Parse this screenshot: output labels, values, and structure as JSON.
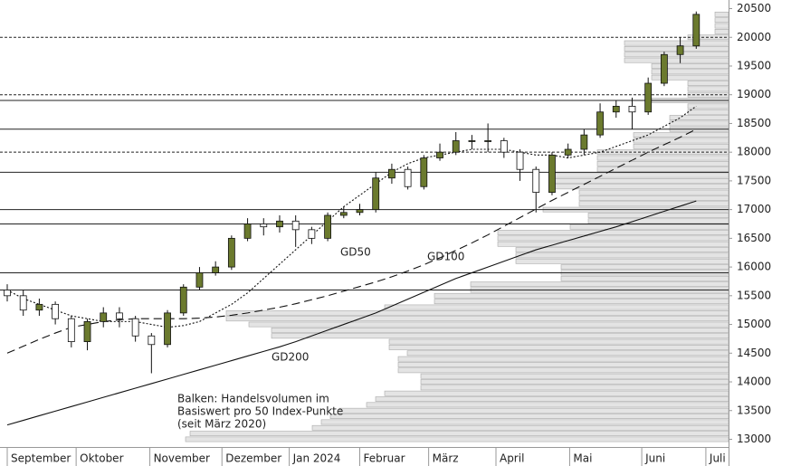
{
  "chart_data": {
    "type": "candlestick",
    "ylim": [
      12850,
      20650
    ],
    "yticks": [
      13000,
      13500,
      14000,
      14500,
      15000,
      15500,
      16000,
      16500,
      17000,
      17500,
      18000,
      18500,
      19000,
      19500,
      20000,
      20500
    ],
    "xlim": [
      0,
      44
    ],
    "xticks": [
      {
        "value": 0,
        "label": "September"
      },
      {
        "value": 4.3,
        "label": "Oktober"
      },
      {
        "value": 8.9,
        "label": "November"
      },
      {
        "value": 13.4,
        "label": "Dezember"
      },
      {
        "value": 17.6,
        "label": "Jan 2024"
      },
      {
        "value": 22,
        "label": "Februar"
      },
      {
        "value": 26.3,
        "label": "März"
      },
      {
        "value": 30.5,
        "label": "April"
      },
      {
        "value": 35.1,
        "label": "Mai"
      },
      {
        "value": 39.6,
        "label": "Juni"
      },
      {
        "value": 43.6,
        "label": "Juli"
      }
    ],
    "ohlc": {
      "open": [
        15600,
        15500,
        15250,
        15350,
        15100,
        14700,
        15050,
        15200,
        15100,
        14800,
        14650,
        15200,
        15650,
        15900,
        16000,
        16500,
        16750,
        16700,
        16800,
        16650,
        16500,
        16900,
        16950,
        17000,
        17550,
        17700,
        17400,
        17900,
        18000,
        18200,
        18200,
        18200,
        18000,
        17700,
        17300,
        17950,
        18050,
        18300,
        18700,
        18800,
        18700,
        19200,
        19700,
        19850
      ],
      "high": [
        15700,
        15600,
        15450,
        15400,
        15150,
        15100,
        15300,
        15300,
        15150,
        14850,
        15250,
        15700,
        16000,
        16100,
        16550,
        16850,
        16850,
        16900,
        16900,
        16700,
        16950,
        17050,
        17100,
        17650,
        17800,
        17750,
        17950,
        18150,
        18350,
        18300,
        18500,
        18250,
        18050,
        17750,
        18000,
        18150,
        18400,
        18850,
        18900,
        18950,
        19300,
        19750,
        20000,
        20450
      ],
      "low": [
        15400,
        15150,
        15150,
        15000,
        14600,
        14550,
        14950,
        14950,
        14700,
        14150,
        14600,
        15150,
        15600,
        15850,
        15950,
        16450,
        16550,
        16600,
        16350,
        16400,
        16450,
        16850,
        16900,
        16950,
        17450,
        17350,
        17350,
        17850,
        17950,
        18050,
        18000,
        17900,
        17500,
        16950,
        17250,
        17900,
        17950,
        18250,
        18600,
        18400,
        18650,
        19150,
        19550,
        19800
      ],
      "close": [
        15500,
        15250,
        15350,
        15100,
        14700,
        15050,
        15200,
        15100,
        14800,
        14650,
        15200,
        15650,
        15900,
        16000,
        16500,
        16750,
        16700,
        16800,
        16650,
        16500,
        16900,
        16950,
        17000,
        17550,
        17700,
        17400,
        17900,
        18000,
        18200,
        18200,
        18200,
        18000,
        17700,
        17300,
        17950,
        18050,
        18300,
        18700,
        18800,
        18700,
        19200,
        19700,
        19850,
        20400
      ],
      "up_color": "#6b7a2e",
      "down_color": "#ffffff"
    },
    "series": [
      {
        "name": "GD50",
        "dash": "2,2",
        "values": [
          15600,
          15450,
          15350,
          15250,
          15150,
          15100,
          15050,
          15050,
          15050,
          15000,
          14950,
          14980,
          15050,
          15200,
          15350,
          15550,
          15800,
          16050,
          16300,
          16550,
          16800,
          17050,
          17250,
          17450,
          17650,
          17800,
          17900,
          17950,
          18000,
          18050,
          18050,
          18050,
          18000,
          17950,
          17950,
          17900,
          17950,
          18000,
          18100,
          18200,
          18300,
          18450,
          18600,
          18800
        ]
      },
      {
        "name": "GD100",
        "dash": "9,5",
        "values": [
          14500,
          14620,
          14740,
          14850,
          14950,
          15000,
          15050,
          15080,
          15100,
          15100,
          15100,
          15100,
          15110,
          15130,
          15160,
          15200,
          15250,
          15300,
          15360,
          15430,
          15500,
          15580,
          15660,
          15740,
          15830,
          15930,
          16040,
          16160,
          16290,
          16420,
          16560,
          16710,
          16860,
          17010,
          17160,
          17300,
          17440,
          17580,
          17720,
          17860,
          18000,
          18130,
          18260,
          18400
        ]
      },
      {
        "name": "GD200",
        "dash": "none",
        "values": [
          13250,
          13330,
          13410,
          13490,
          13570,
          13650,
          13730,
          13810,
          13890,
          13970,
          14050,
          14130,
          14210,
          14290,
          14370,
          14450,
          14530,
          14610,
          14700,
          14800,
          14900,
          15000,
          15100,
          15200,
          15320,
          15440,
          15560,
          15680,
          15800,
          15900,
          16000,
          16100,
          16200,
          16300,
          16380,
          16460,
          16540,
          16620,
          16700,
          16790,
          16880,
          16970,
          17060,
          17150
        ]
      }
    ],
    "solid_levels": [
      15600,
      15900,
      16750,
      17000,
      17650,
      18400,
      18900
    ],
    "dotted_levels": [
      18000,
      19000,
      20000
    ],
    "volume_lim": [
      0,
      600
    ],
    "volume_profile": {
      "prices": [
        13000,
        13100,
        13200,
        13300,
        13400,
        13500,
        13600,
        13700,
        13800,
        13900,
        14000,
        14100,
        14200,
        14300,
        14400,
        14500,
        14600,
        14700,
        14800,
        14900,
        15000,
        15100,
        15200,
        15300,
        15400,
        15500,
        15600,
        15700,
        15800,
        15900,
        16000,
        16100,
        16200,
        16300,
        16400,
        16500,
        16600,
        16700,
        16800,
        16900,
        17000,
        17100,
        17200,
        17300,
        17400,
        17500,
        17600,
        17700,
        17800,
        17900,
        18000,
        18100,
        18200,
        18300,
        18400,
        18500,
        18600,
        18700,
        18800,
        18900,
        19000,
        19100,
        19200,
        19300,
        19400,
        19500,
        19600,
        19700,
        19800,
        19900,
        20000,
        20100,
        20200,
        20300,
        20400
      ],
      "values": [
        600,
        595,
        460,
        450,
        440,
        430,
        400,
        390,
        380,
        340,
        340,
        340,
        365,
        365,
        365,
        355,
        375,
        375,
        505,
        505,
        530,
        555,
        555,
        380,
        325,
        325,
        285,
        285,
        185,
        185,
        185,
        235,
        235,
        235,
        255,
        255,
        255,
        175,
        155,
        155,
        205,
        165,
        165,
        165,
        195,
        195,
        195,
        145,
        145,
        145,
        145,
        105,
        105,
        105,
        65,
        65,
        65,
        45,
        45,
        85,
        45,
        45,
        45,
        85,
        85,
        85,
        115,
        115,
        115,
        115,
        45,
        15,
        15,
        15,
        15
      ]
    },
    "annotations": [
      "GD50",
      "GD100",
      "GD200"
    ],
    "note": [
      "Balken: Handelsvolumen im",
      "Basiswert pro 50 Index-Punkte",
      "(seit März 2020)"
    ]
  }
}
